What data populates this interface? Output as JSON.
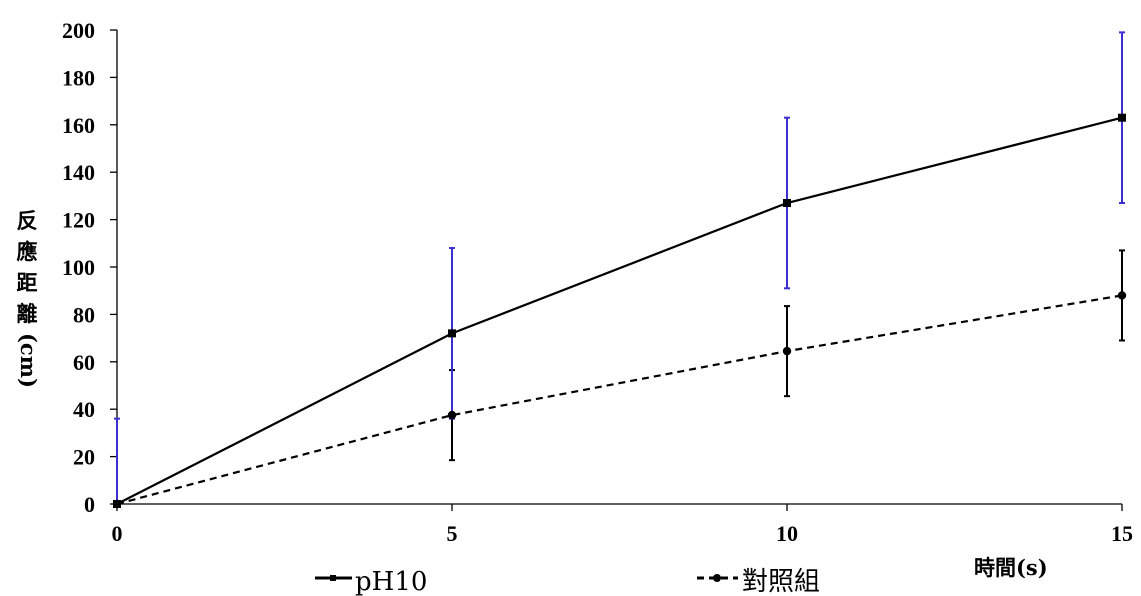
{
  "chart_data": {
    "type": "line",
    "title": "",
    "xlabel": "時間(s)",
    "ylabel": "反應距離(cm)",
    "xlim": [
      0,
      15
    ],
    "ylim": [
      0,
      200
    ],
    "xticks": [
      0,
      5,
      10,
      15
    ],
    "yticks": [
      0,
      20,
      40,
      60,
      80,
      100,
      120,
      140,
      160,
      180,
      200
    ],
    "grid": false,
    "legend_position": "bottom",
    "series": [
      {
        "name": "pH10",
        "x": [
          0,
          5,
          10,
          15
        ],
        "y": [
          0,
          72,
          127,
          163
        ],
        "error": [
          36,
          36,
          36,
          36
        ],
        "line_style": "solid",
        "marker": "square",
        "line_color": "#000000",
        "error_color": "#3a2fd0"
      },
      {
        "name": "對照組",
        "x": [
          0,
          5,
          10,
          15
        ],
        "y": [
          0,
          37.5,
          64.5,
          88
        ],
        "error": [
          0,
          19,
          19,
          19
        ],
        "line_style": "dashed",
        "marker": "circle",
        "line_color": "#000000",
        "error_color": "#000000"
      }
    ]
  }
}
